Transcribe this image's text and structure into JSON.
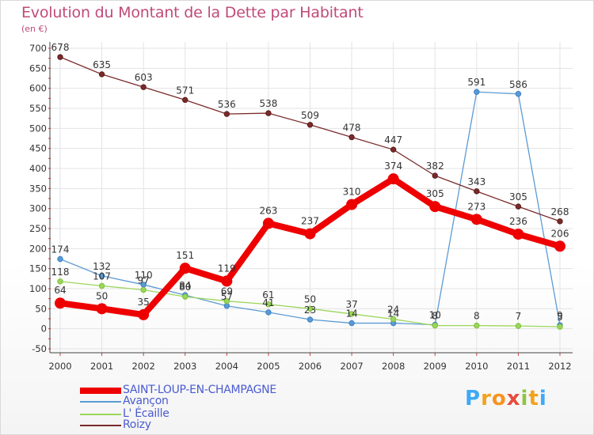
{
  "title": "Evolution du Montant de la Dette par Habitant",
  "unit_label": "(en €)",
  "logo": {
    "text": "Proxiti",
    "letter_colors": [
      "#3fa9f5",
      "#f2a21c",
      "#f7931e",
      "#e74c3c",
      "#8dc63f",
      "#f2a21c",
      "#3fa9f5"
    ]
  },
  "chart_data": {
    "type": "line",
    "title": "Evolution du Montant de la Dette par Habitant",
    "ylabel": "(en €)",
    "xlabel": "",
    "x": [
      "2000",
      "2001",
      "2002",
      "2003",
      "2004",
      "2005",
      "2006",
      "2007",
      "2008",
      "2009",
      "2010",
      "2011",
      "2012"
    ],
    "yticks": [
      "-50",
      "0",
      "50",
      "100",
      "150",
      "200",
      "250",
      "300",
      "350",
      "400",
      "450",
      "500",
      "550",
      "600",
      "650",
      "700"
    ],
    "ylim": [
      -50,
      700
    ],
    "grid": true,
    "legend_position": "bottom-left",
    "series": [
      {
        "name": "SAINT-LOUP-EN-CHAMPAGNE",
        "color": "#ee0000",
        "values": [
          64,
          50,
          35,
          151,
          119,
          263,
          237,
          310,
          374,
          305,
          273,
          236,
          206
        ],
        "labels": [
          "64",
          "50",
          "35",
          "151",
          "119",
          "263",
          "237",
          "310",
          "374",
          "305",
          "273",
          "236",
          "206"
        ]
      },
      {
        "name": "Avançon",
        "color": "#5b9bd5",
        "values": [
          174,
          132,
          110,
          84,
          57,
          41,
          23,
          14,
          14,
          10,
          591,
          586,
          9
        ],
        "labels": [
          "174",
          "132",
          "110",
          "84",
          "57",
          "41",
          "23",
          "14",
          "14",
          "10",
          "591",
          "586",
          "9"
        ]
      },
      {
        "name": "L' Écaille",
        "color": "#9bd65b",
        "values": [
          118,
          107,
          97,
          80,
          69,
          61,
          50,
          37,
          24,
          8,
          8,
          7,
          5
        ],
        "labels": [
          "118",
          "107",
          "97",
          "80",
          "69",
          "61",
          "50",
          "37",
          "24",
          "8",
          "8",
          "7",
          "5"
        ]
      },
      {
        "name": "Roizy",
        "color": "#7b2a2a",
        "values": [
          678,
          635,
          603,
          571,
          536,
          538,
          509,
          478,
          447,
          382,
          343,
          305,
          268
        ],
        "labels": [
          "678",
          "635",
          "603",
          "571",
          "536",
          "538",
          "509",
          "478",
          "447",
          "382",
          "343",
          "305",
          "268"
        ]
      }
    ]
  }
}
